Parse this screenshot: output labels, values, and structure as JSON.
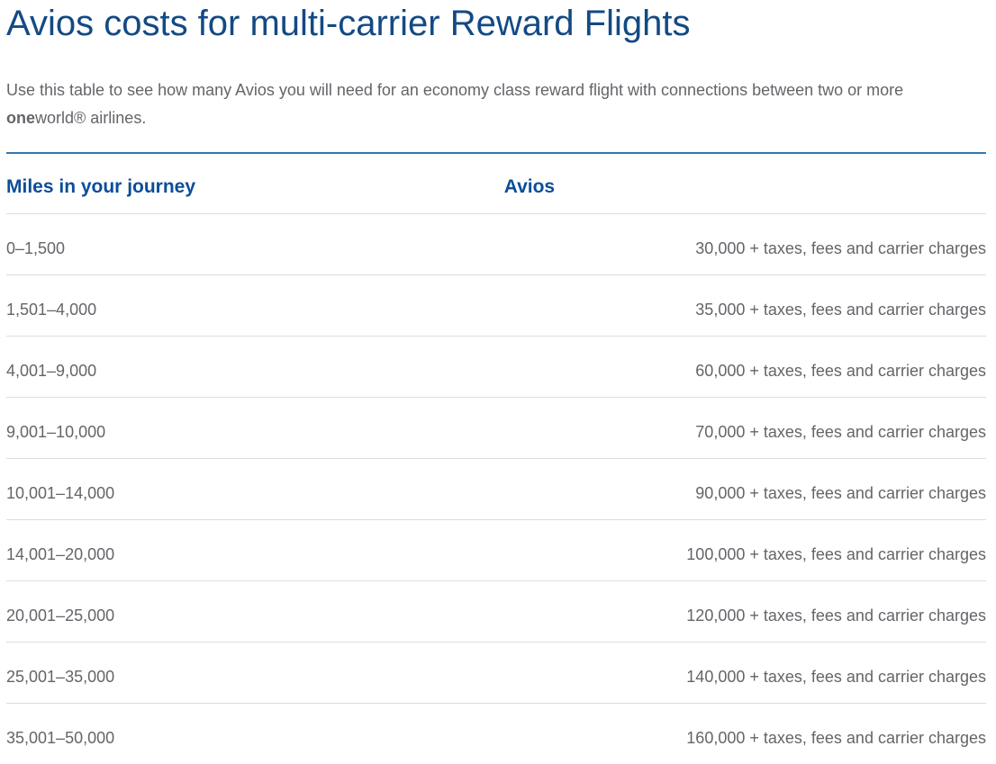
{
  "page": {
    "title": "Avios costs for multi-carrier Reward Flights",
    "intro_before": "Use this table to see how many Avios you will need for an economy class reward flight with connections between two or more ",
    "intro_brand_bold": "one",
    "intro_after": "world® airlines."
  },
  "table": {
    "headers": {
      "miles": "Miles in your journey",
      "avios": "Avios"
    },
    "rows": [
      {
        "miles": "0–1,500",
        "avios": "30,000 + taxes, fees and carrier charges"
      },
      {
        "miles": "1,501–4,000",
        "avios": "35,000 + taxes, fees and carrier charges"
      },
      {
        "miles": "4,001–9,000",
        "avios": "60,000 + taxes, fees and carrier charges"
      },
      {
        "miles": "9,001–10,000",
        "avios": "70,000 + taxes, fees and carrier charges"
      },
      {
        "miles": "10,001–14,000",
        "avios": "90,000 + taxes, fees and carrier charges"
      },
      {
        "miles": "14,001–20,000",
        "avios": "100,000 + taxes, fees and carrier charges"
      },
      {
        "miles": "20,001–25,000",
        "avios": "120,000 + taxes, fees and carrier charges"
      },
      {
        "miles": "25,001–35,000",
        "avios": "140,000 + taxes, fees and carrier charges"
      },
      {
        "miles": "35,001–50,000",
        "avios": "160,000 + taxes, fees and carrier charges"
      }
    ]
  },
  "colors": {
    "title_blue": "#134a84",
    "header_blue": "#0b4d99",
    "accent_rule_blue": "#3379b2",
    "divider_gray": "#dddddd",
    "text_gray": "#636569"
  }
}
